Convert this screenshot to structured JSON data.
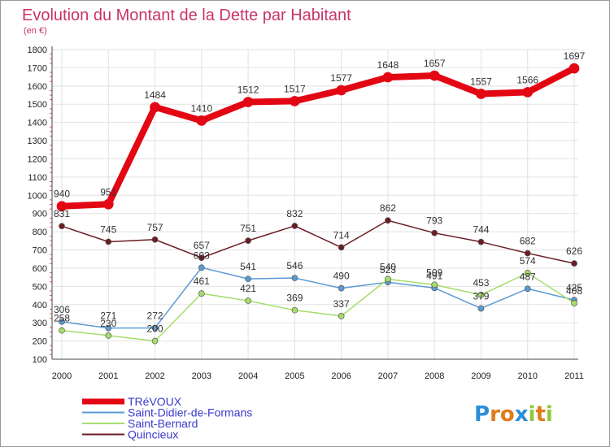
{
  "title": "Evolution du Montant de la Dette par Habitant",
  "subtitle": "(en €)",
  "logo": {
    "letters": [
      "P",
      "r",
      "o",
      "x",
      "i",
      "t",
      "i"
    ],
    "colors": [
      "#2a8fd6",
      "#e07b1a",
      "#e07b1a",
      "#2a8fd6",
      "#8fc83a",
      "#e07b1a",
      "#8fc83a"
    ]
  },
  "chart_data": {
    "type": "line",
    "title": "Evolution du Montant de la Dette par Habitant",
    "subtitle": "(en €)",
    "xlabel": "",
    "ylabel": "",
    "x": [
      "2000",
      "2001",
      "2002",
      "2003",
      "2004",
      "2005",
      "2006",
      "2007",
      "2008",
      "2009",
      "2010",
      "2011"
    ],
    "ylim": [
      100,
      1800
    ],
    "yticks": [
      "100",
      "200",
      "300",
      "400",
      "500",
      "600",
      "700",
      "800",
      "900",
      "1000",
      "1100",
      "1200",
      "1300",
      "1400",
      "1500",
      "1600",
      "1700",
      "1800"
    ],
    "grid": true,
    "legend": "bottom-left",
    "series": [
      {
        "name": "TRéVOUX",
        "color": "#e30613",
        "values": [
          940,
          951,
          1484,
          1410,
          1512,
          1517,
          1577,
          1648,
          1657,
          1557,
          1566,
          1697
        ],
        "labels": [
          "940",
          "951",
          "1484",
          "1410",
          "1512",
          "1517",
          "1577",
          "1648",
          "1657",
          "1557",
          "1566",
          "1697"
        ]
      },
      {
        "name": "Saint-Didier-de-Formans",
        "color": "#5b9bd5",
        "values": [
          306,
          271,
          272,
          603,
          541,
          546,
          490,
          523,
          491,
          379,
          487,
          425
        ],
        "labels": [
          "306",
          "271",
          "272",
          "603",
          "541",
          "546",
          "490",
          "523",
          "491",
          "379",
          "487",
          "425"
        ]
      },
      {
        "name": "Saint-Bernard",
        "color": "#a6dd6a",
        "values": [
          258,
          230,
          200,
          461,
          421,
          369,
          337,
          540,
          509,
          453,
          574,
          408
        ],
        "labels": [
          "258",
          "230",
          "200",
          "461",
          "421",
          "369",
          "337",
          "540",
          "509",
          "453",
          "574",
          "408"
        ]
      },
      {
        "name": "Quincieux",
        "color": "#6b1d24",
        "values": [
          831,
          745,
          757,
          657,
          751,
          832,
          714,
          862,
          793,
          744,
          682,
          626
        ],
        "labels": [
          "831",
          "745",
          "757",
          "657",
          "751",
          "832",
          "714",
          "862",
          "793",
          "744",
          "682",
          "626"
        ]
      }
    ]
  }
}
